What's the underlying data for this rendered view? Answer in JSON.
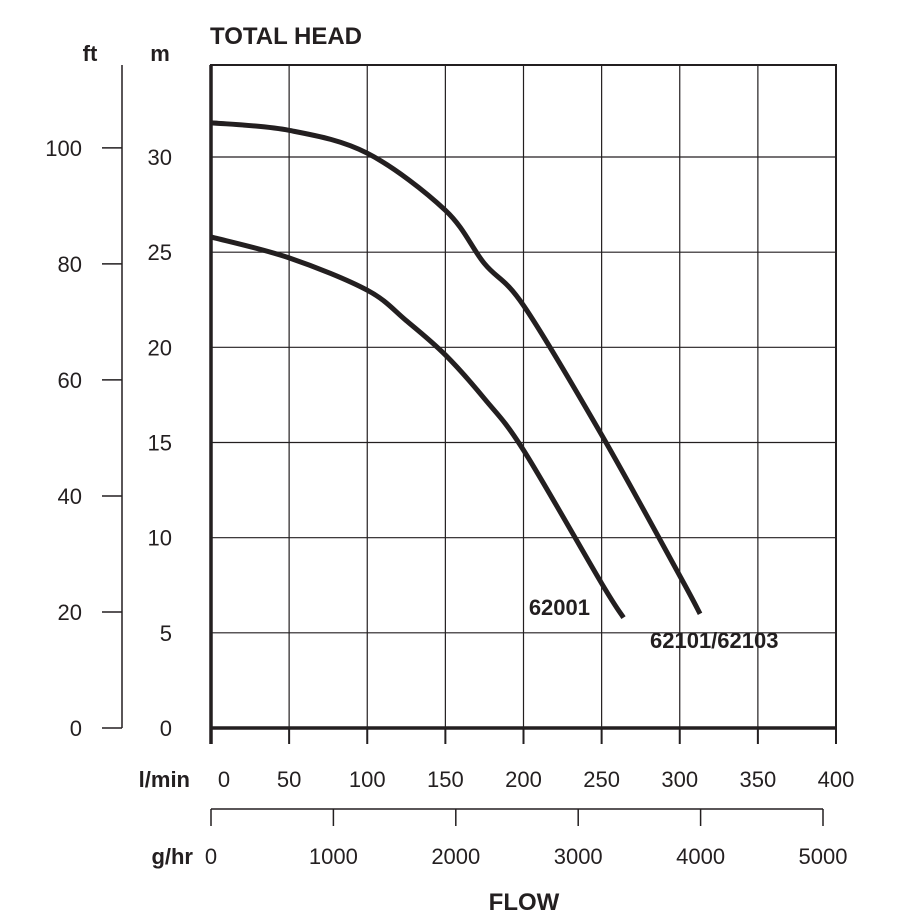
{
  "chart_data": {
    "type": "line",
    "title": "TOTAL HEAD",
    "xlabel": "FLOW",
    "ylabel_left_outer": "ft",
    "ylabel_left_inner": "m",
    "x_primary_unit": "l/min",
    "x_secondary_unit": "g/hr",
    "xlim": [
      0,
      400
    ],
    "ylim": [
      0,
      35
    ],
    "x_ticks": [
      0,
      50,
      100,
      150,
      200,
      250,
      300,
      350,
      400
    ],
    "y_ticks_m": [
      0,
      5,
      10,
      15,
      20,
      25,
      30
    ],
    "y_ticks_ft": [
      0,
      20,
      40,
      60,
      80,
      100
    ],
    "x_ticks_ghr": [
      0,
      1000,
      2000,
      3000,
      4000,
      5000
    ],
    "grid": true,
    "series": [
      {
        "name": "62101/62103",
        "x": [
          0,
          50,
          100,
          150,
          175,
          200,
          250,
          300,
          313
        ],
        "y": [
          31.8,
          31.4,
          30.2,
          27.2,
          24.4,
          22.2,
          15.4,
          8.0,
          6.0
        ]
      },
      {
        "name": "62001",
        "x": [
          0,
          50,
          100,
          125,
          150,
          175,
          200,
          250,
          264
        ],
        "y": [
          25.8,
          24.7,
          23.0,
          21.4,
          19.6,
          17.3,
          14.6,
          7.6,
          5.8
        ]
      }
    ]
  }
}
